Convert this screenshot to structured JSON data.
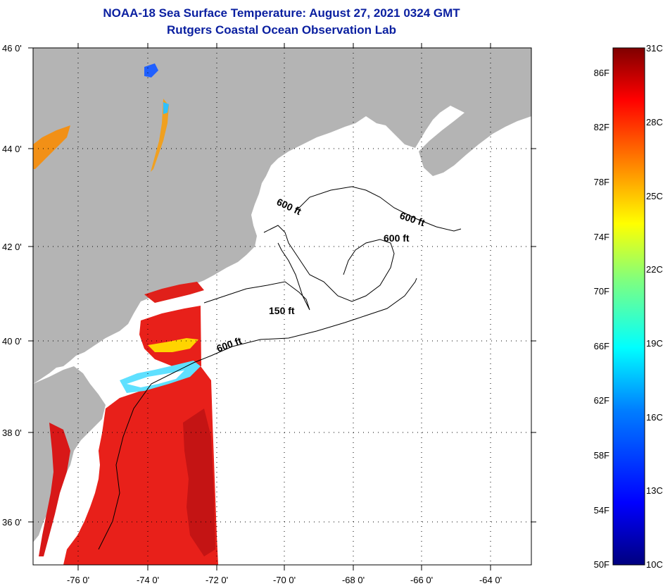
{
  "title": {
    "line1": "NOAA-18 Sea Surface Temperature:  August 27, 2021 0324 GMT",
    "line2": "Rutgers Coastal Ocean Observation Lab"
  },
  "axes": {
    "longitude_labels": [
      "-76 0'",
      "-74 0'",
      "-72 0'",
      "-70 0'",
      "-68 0'",
      "-66 0'",
      "-64 0'"
    ],
    "latitude_labels": [
      "46 0'",
      "44 0'",
      "42 0'",
      "40 0'",
      "38 0'",
      "36 0'"
    ]
  },
  "contours": {
    "label_600_a": "600 ft",
    "label_600_b": "600 ft",
    "label_600_c": "600 ft",
    "label_150": "150 ft",
    "label_600_d": "600 ft"
  },
  "colorbar": {
    "celsius_labels": [
      "31C",
      "28C",
      "25C",
      "22C",
      "19C",
      "16C",
      "13C",
      "10C"
    ],
    "fahrenheit_labels": [
      "86F",
      "82F",
      "78F",
      "74F",
      "70F",
      "66F",
      "62F",
      "58F",
      "54F",
      "50F"
    ],
    "colors": [
      "#00007f",
      "#0000ff",
      "#007fff",
      "#00ffff",
      "#7fff7f",
      "#ffff00",
      "#ff7f00",
      "#ff0000",
      "#7f0000"
    ]
  },
  "colors": {
    "land": "#b4b4b4",
    "ocean_no_data": "#ffffff",
    "warm_sst": "#e8201a",
    "title": "#0a1fa0"
  }
}
